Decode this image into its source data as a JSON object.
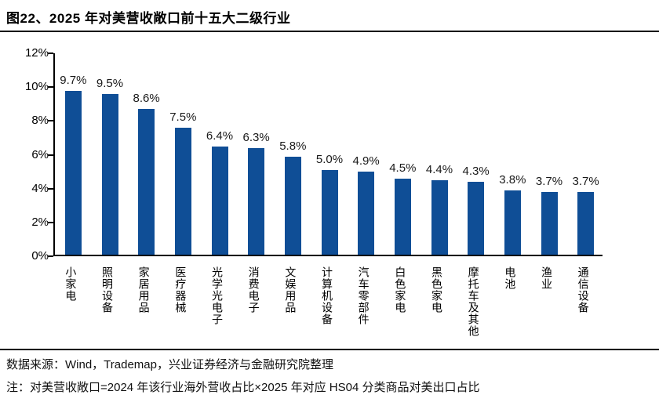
{
  "figure": {
    "title": "图22、2025 年对美营收敞口前十五大二级行业",
    "source_note": "数据来源：Wind，Trademap，兴业证券经济与金融研究院整理",
    "footnote": "注：对美营收敞口=2024 年该行业海外营收占比×2025 年对应 HS04 分类商品对美出口占比"
  },
  "colors": {
    "bar": "#0F4E96",
    "axis": "#000000",
    "label_text": "#1a1a1a",
    "background": "#FFFFFF"
  },
  "chart_data": {
    "type": "bar",
    "title": "2025 年对美营收敞口前十五大二级行业",
    "categories": [
      "小家电",
      "照明设备",
      "家居用品",
      "医疗器械",
      "光学光电子",
      "消费电子",
      "文娱用品",
      "计算机设备",
      "汽车零部件",
      "白色家电",
      "黑色家电",
      "摩托车及其他",
      "电池",
      "渔业",
      "通信设备"
    ],
    "values": [
      9.7,
      9.5,
      8.6,
      7.5,
      6.4,
      6.3,
      5.8,
      5.0,
      4.9,
      4.5,
      4.4,
      4.3,
      3.8,
      3.7,
      3.7
    ],
    "data_labels": [
      "9.7%",
      "9.5%",
      "8.6%",
      "7.5%",
      "6.4%",
      "6.3%",
      "5.8%",
      "5.0%",
      "4.9%",
      "4.5%",
      "4.4%",
      "4.3%",
      "3.8%",
      "3.7%",
      "3.7%"
    ],
    "xlabel": "",
    "ylabel": "",
    "ylim": [
      0,
      12
    ],
    "ytick_step": 2,
    "ytick_labels": [
      "0%",
      "2%",
      "4%",
      "6%",
      "8%",
      "10%",
      "12%"
    ],
    "grid": false,
    "legend_position": "none",
    "unit": "%"
  }
}
